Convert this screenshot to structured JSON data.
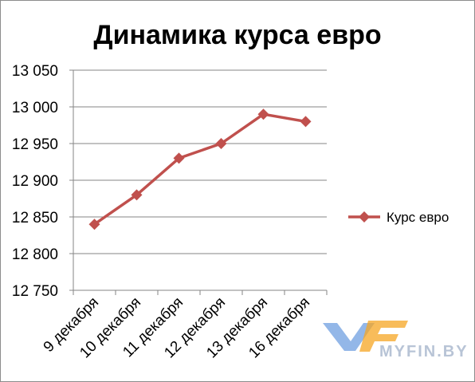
{
  "chart_data": {
    "type": "line",
    "title": "Динамика курса евро",
    "xlabel": "",
    "ylabel": "",
    "categories": [
      "9 декабря",
      "10 декабря",
      "11 декабря",
      "12 декабря",
      "13 декабря",
      "16 декабря"
    ],
    "series": [
      {
        "name": "Курс евро",
        "values": [
          12840,
          12880,
          12930,
          12950,
          12990,
          12980
        ],
        "color": "#c0504d"
      }
    ],
    "ylim": [
      12750,
      13050
    ],
    "yticks": [
      12750,
      12800,
      12850,
      12900,
      12950,
      13000,
      13050
    ],
    "ytick_labels": [
      "12 750",
      "12 800",
      "12 850",
      "12 900",
      "12 950",
      "13 000",
      "13 050"
    ],
    "grid": true,
    "legend": "right",
    "marker": "diamond-icon"
  },
  "watermark": {
    "text": "MYFIN.BY",
    "colors": {
      "blue": "#3a7bd5",
      "orange": "#f5a623",
      "gray": "#b8c4d6"
    }
  }
}
